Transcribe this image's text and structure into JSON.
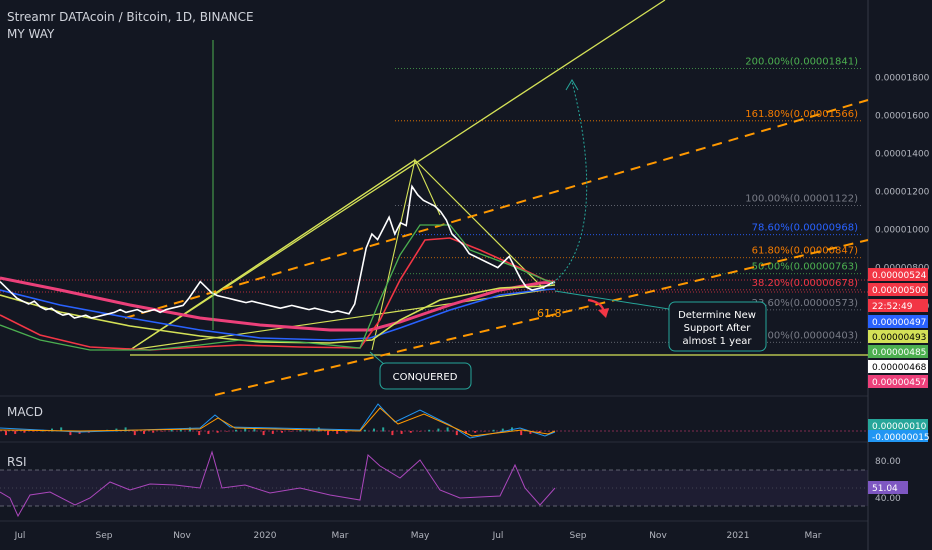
{
  "header": {
    "symbol": "Streamr DATAcoin / Bitcoin, 1D, BINANCE",
    "author": "MY WAY"
  },
  "chart_data": {
    "type": "line",
    "price_axis": {
      "ticks": [
        "0.00001800",
        "0.00001600",
        "0.00001400",
        "0.00001200",
        "0.00001000",
        "0.00000800",
        "0.00000600"
      ]
    },
    "time_axis": {
      "ticks": [
        "Jul",
        "Sep",
        "Nov",
        "2020",
        "Mar",
        "May",
        "Jul",
        "Sep",
        "Nov",
        "2021",
        "Mar"
      ]
    },
    "fib_levels": [
      {
        "label": "200.00%(0.00001841)",
        "value": 1.841e-05,
        "color": "#4caf50"
      },
      {
        "label": "161.80%(0.00001566)",
        "value": 1.566e-05,
        "color": "#f57c00"
      },
      {
        "label": "100.00%(0.00001122)",
        "value": 1.122e-05,
        "color": "#787b86"
      },
      {
        "label": "78.60%(0.00000968)",
        "value": 9.68e-06,
        "color": "#2962ff"
      },
      {
        "label": "61.80%(0.00000847)",
        "value": 8.47e-06,
        "color": "#f57c00"
      },
      {
        "label": "50.00%(0.00000763)",
        "value": 7.63e-06,
        "color": "#4caf50"
      },
      {
        "label": "38.20%(0.00000678)",
        "value": 6.78e-06,
        "color": "#f23645"
      },
      {
        "label": "23.60%(0.00000573)",
        "value": 5.73e-06,
        "color": "#787b86"
      },
      {
        "label": "0.00%(0.00000403)",
        "value": 4.03e-06,
        "color": "#787b86"
      }
    ],
    "price_badges": [
      {
        "text": "0.00000524",
        "bg": "#f23645",
        "fg": "#ffffff"
      },
      {
        "text": "0.00000500",
        "bg": "#f23645",
        "fg": "#ffffff"
      },
      {
        "text": "22:52:49",
        "bg": "#f23645",
        "fg": "#ffffff"
      },
      {
        "text": "0.00000497",
        "bg": "#2962ff",
        "fg": "#ffffff"
      },
      {
        "text": "0.00000493",
        "bg": "#d4e157",
        "fg": "#000000"
      },
      {
        "text": "0.00000485",
        "bg": "#4caf50",
        "fg": "#ffffff"
      },
      {
        "text": "0.00000468",
        "bg": "#ffffff",
        "fg": "#000000"
      },
      {
        "text": "0.00000457",
        "bg": "#ec407a",
        "fg": "#ffffff"
      }
    ],
    "annotations": {
      "fib_618": "61.8",
      "conquered": "CONQUERED",
      "support_note": [
        "Determine New",
        "Support After",
        "almost 1 year"
      ]
    },
    "macd": {
      "title": "MACD",
      "badges": [
        {
          "text": "0.00000010",
          "bg": "#26a69a"
        },
        {
          "text": "-0.00000015",
          "bg": "#2196f3"
        }
      ]
    },
    "rsi": {
      "title": "RSI",
      "ticks": [
        "80.00",
        "40.00"
      ],
      "value_badge": "51.04",
      "upper": 70,
      "lower": 30
    },
    "series": [
      {
        "name": "",
        "values": [
          5.3,
          5.1,
          4.9,
          4.7,
          4.6,
          4.5,
          4.6,
          4.4,
          4.3,
          4.35,
          4.2,
          4.1,
          4.15,
          4.0,
          4.05,
          4.1,
          4.0,
          4.05,
          4.1,
          4.15,
          4.2,
          4.3,
          4.2,
          4.25,
          4.3,
          4.2,
          4.25,
          4.3,
          4.2,
          4.3,
          4.35,
          4.4,
          4.45,
          4.7,
          5.0,
          5.3,
          5.1,
          4.9,
          4.8,
          4.75,
          4.7,
          4.65,
          4.6,
          4.55,
          4.6,
          4.55,
          4.5,
          4.45,
          4.4,
          4.35,
          4.4,
          4.45,
          4.4,
          4.35,
          4.3,
          4.35,
          4.3,
          4.25,
          4.2,
          4.25,
          4.2,
          4.15,
          4.5,
          5.5,
          6.5,
          7.0,
          6.8,
          7.2,
          7.6,
          7.0,
          7.4,
          7.3,
          8.7,
          8.4,
          8.2,
          8.1,
          8.0,
          7.8,
          7.5,
          7.0,
          6.8,
          6.6,
          6.3,
          6.2,
          6.1,
          6.0,
          5.9,
          5.8,
          6.0,
          6.2,
          5.8,
          5.4,
          5.1,
          5.0,
          5.05,
          5.1,
          5.2,
          5.3
        ]
      }
    ],
    "ylim": [
      3.9e-06,
      1.92e-05
    ]
  }
}
